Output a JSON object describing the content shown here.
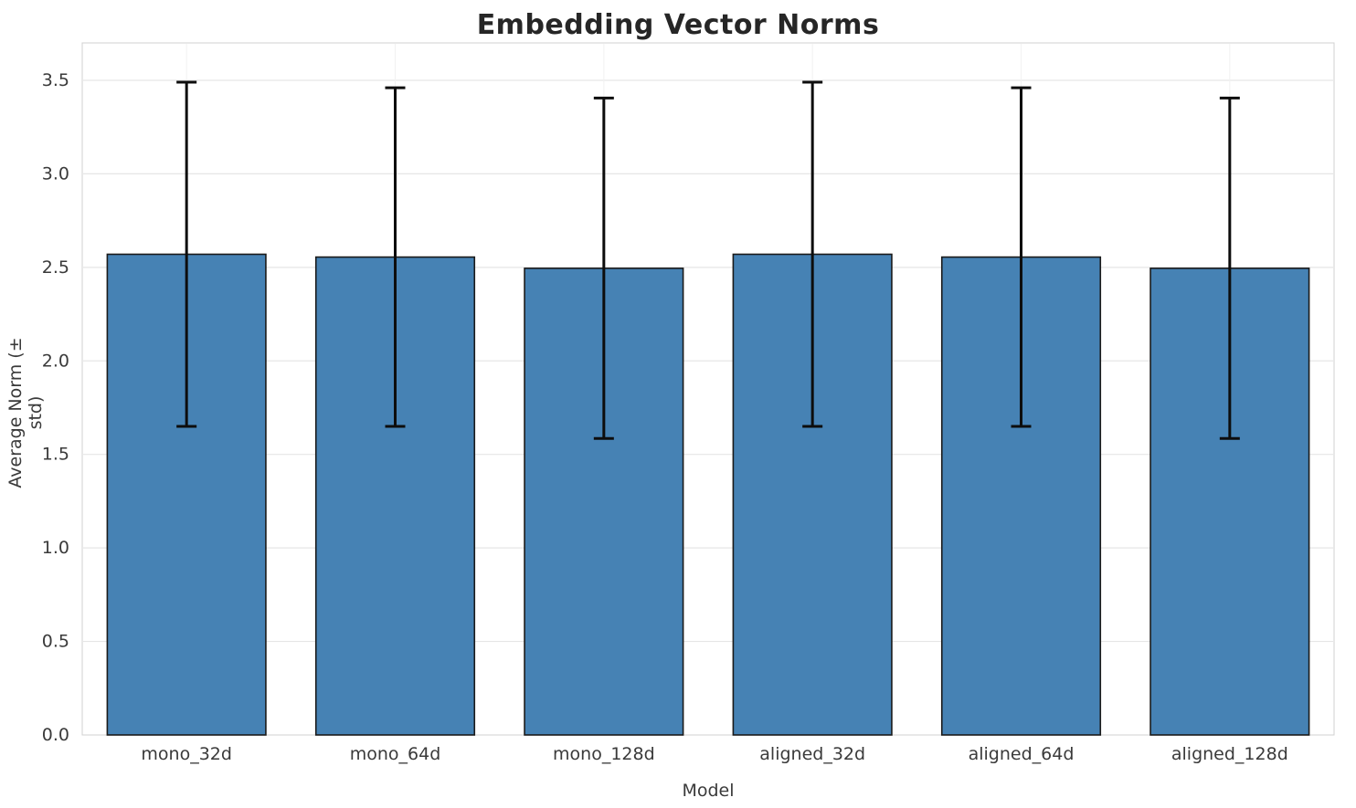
{
  "chart_data": {
    "type": "bar",
    "title": "Embedding Vector Norms",
    "xlabel": "Model",
    "ylabel": "Average Norm (± std)",
    "categories": [
      "mono_32d",
      "mono_64d",
      "mono_128d",
      "aligned_32d",
      "aligned_64d",
      "aligned_128d"
    ],
    "values": [
      2.57,
      2.555,
      2.495,
      2.57,
      2.555,
      2.495
    ],
    "errors": [
      0.92,
      0.905,
      0.91,
      0.92,
      0.905,
      0.91
    ],
    "yticks": [
      "0.0",
      "0.5",
      "1.0",
      "1.5",
      "2.0",
      "2.5",
      "3.0",
      "3.5"
    ],
    "ylim": [
      0,
      3.7
    ],
    "grid": true,
    "legend_position": "none",
    "bar_color": "#4682b4",
    "bar_edge_color": "#1a1a1a",
    "error_color": "#0d0d0d",
    "grid_color": "#e6e6e6",
    "frame_color": "#d0d0d0"
  }
}
